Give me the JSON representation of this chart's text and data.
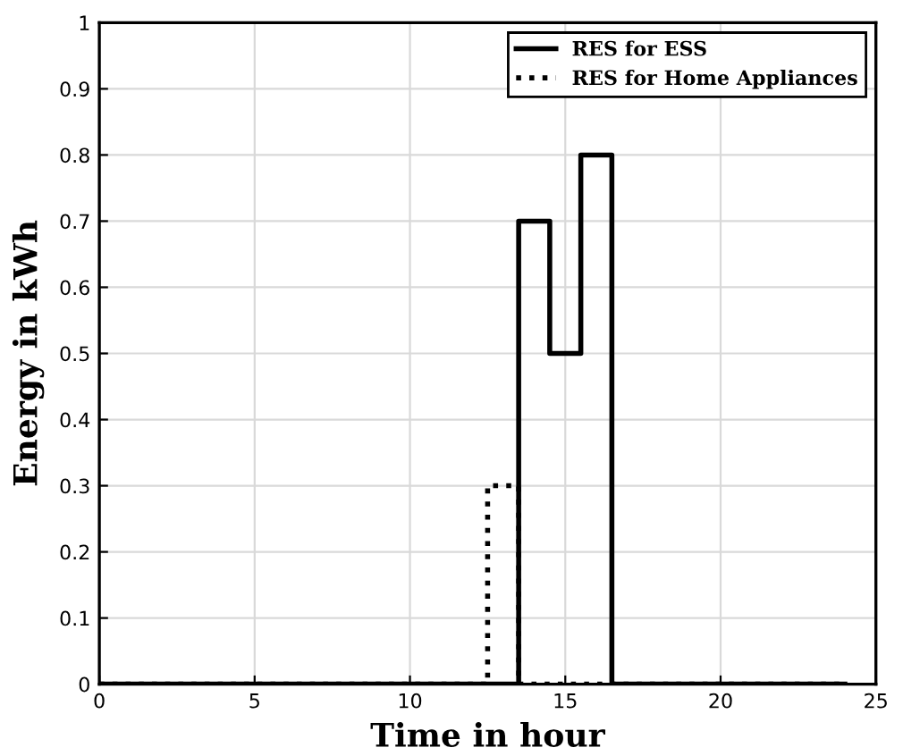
{
  "chart_data": {
    "type": "step",
    "xlabel": "Time in hour",
    "ylabel": "Energy in kWh",
    "x": [
      0,
      12.5,
      13.5,
      14.5,
      15.5,
      16.5,
      24
    ],
    "series": [
      {
        "name": "RES for Home Appliances",
        "color": "#000000",
        "line_style": "dotted",
        "values": [
          0,
          0.3,
          0,
          0,
          0,
          0,
          0
        ]
      },
      {
        "name": "RES for ESS",
        "color": "#000000",
        "line_style": "solid",
        "values": [
          0,
          0,
          0.7,
          0.5,
          0.8,
          0,
          0
        ]
      }
    ],
    "xlim": [
      0,
      25
    ],
    "xticks": [
      0,
      5,
      10,
      15,
      20,
      25
    ],
    "ylim": [
      0,
      1
    ],
    "yticks": [
      0,
      0.1,
      0.2,
      0.3,
      0.4,
      0.5,
      0.6,
      0.7,
      0.8,
      0.9,
      1
    ],
    "grid": true,
    "legend": "top right",
    "marker": "none"
  }
}
